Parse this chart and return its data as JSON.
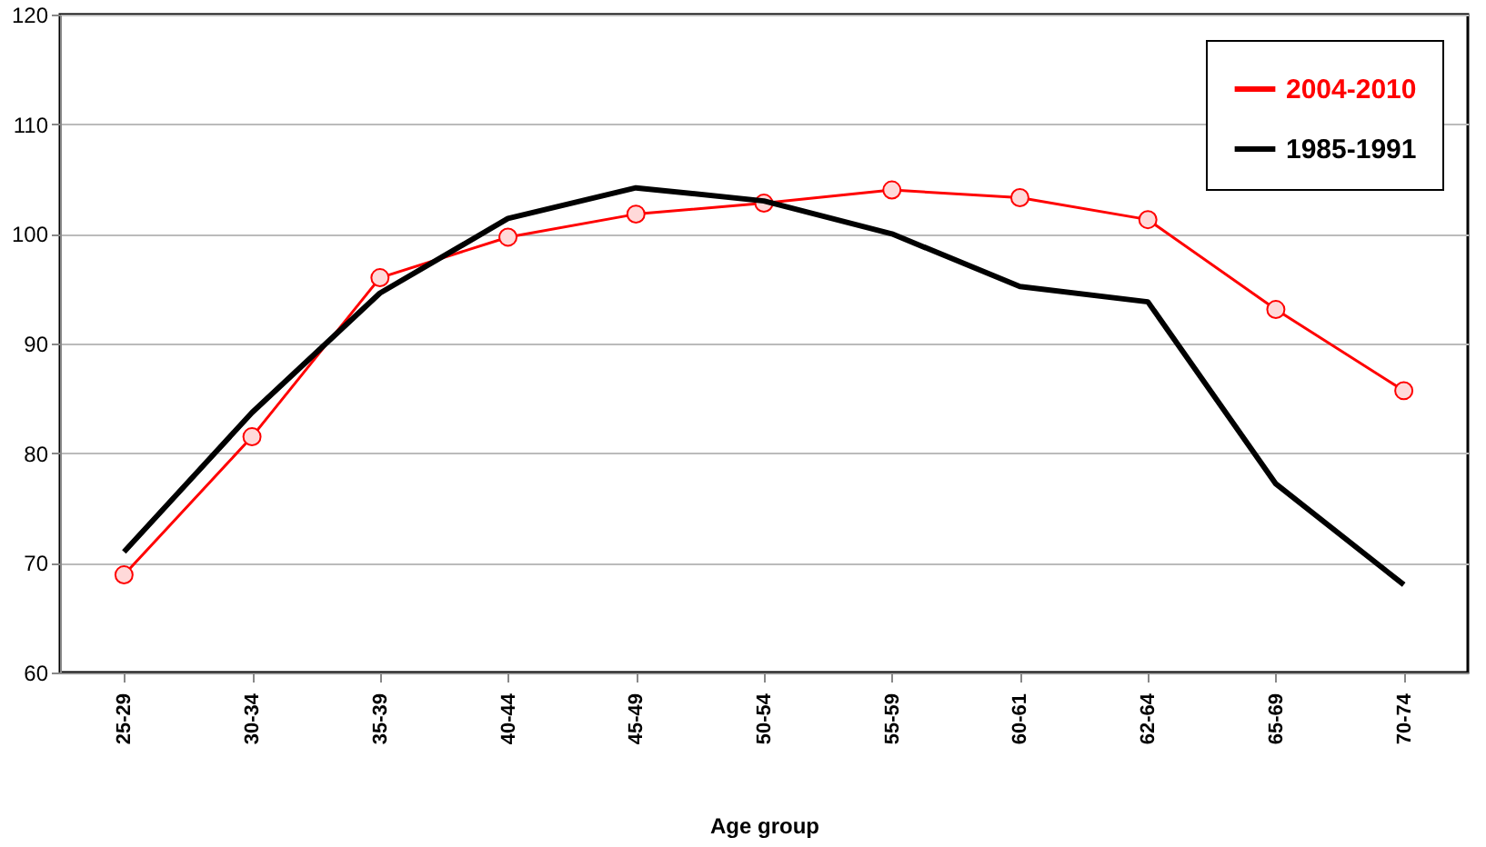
{
  "chart_data": {
    "type": "line",
    "xlabel": "Age group",
    "categories": [
      "25-29",
      "30-34",
      "35-39",
      "40-44",
      "45-49",
      "50-54",
      "55-59",
      "60-61",
      "62-64",
      "65-69",
      "70-74"
    ],
    "series": [
      {
        "name": "2004-2010",
        "color": "#ff0000",
        "marker": "circle",
        "values": [
          68.9,
          81.5,
          96.0,
          99.7,
          101.8,
          102.8,
          104.0,
          103.3,
          101.3,
          93.1,
          85.7
        ]
      },
      {
        "name": "1985-1991",
        "color": "#000000",
        "marker": "none",
        "values": [
          71.0,
          83.7,
          94.6,
          101.4,
          104.2,
          103.0,
          100.0,
          95.2,
          93.8,
          77.2,
          68.0
        ]
      }
    ],
    "ylim": [
      60,
      120
    ],
    "yticks": [
      60,
      70,
      80,
      90,
      100,
      110,
      120
    ],
    "grid": "y",
    "legend": "top right"
  }
}
